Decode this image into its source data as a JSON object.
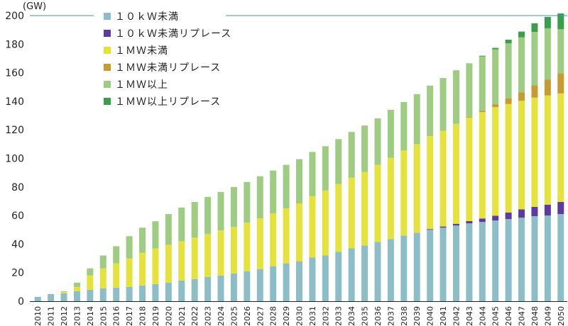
{
  "chart_data": {
    "type": "bar",
    "stacked": true,
    "unit_label": "(GW)",
    "ylim": [
      0,
      200
    ],
    "yticks": [
      0,
      20,
      40,
      60,
      80,
      100,
      120,
      140,
      160,
      180,
      200
    ],
    "categories": [
      "2010",
      "2011",
      "2012",
      "2013",
      "2014",
      "2015",
      "2016",
      "2017",
      "2018",
      "2019",
      "2020",
      "2021",
      "2022",
      "2023",
      "2024",
      "2025",
      "2026",
      "2027",
      "2028",
      "2029",
      "2030",
      "2031",
      "2032",
      "2033",
      "2034",
      "2035",
      "2036",
      "2037",
      "2038",
      "2039",
      "2040",
      "2041",
      "2042",
      "2043",
      "2044",
      "2045",
      "2046",
      "2047",
      "2048",
      "2049",
      "2050"
    ],
    "series": [
      {
        "name": "１０ｋＷ未満",
        "color": "#8dbec8",
        "values": [
          3,
          5,
          5.5,
          7,
          8,
          9,
          9.5,
          10,
          11,
          12,
          13,
          14.5,
          15.5,
          17,
          18,
          19.5,
          21,
          22.5,
          24.5,
          26.5,
          28,
          30.5,
          32,
          34.5,
          37,
          39,
          41.5,
          43.5,
          46,
          48,
          50,
          51.5,
          53,
          54.5,
          55.5,
          56.5,
          57.5,
          58.5,
          59.5,
          60,
          61
        ]
      },
      {
        "name": "１０ｋＷ未満リプレース",
        "color": "#5b3c9e",
        "values": [
          0,
          0,
          0,
          0,
          0,
          0,
          0,
          0,
          0,
          0,
          0,
          0,
          0,
          0,
          0,
          0,
          0,
          0,
          0,
          0,
          0,
          0,
          0,
          0,
          0,
          0,
          0,
          0,
          0,
          0,
          0.5,
          0.8,
          1.2,
          1.6,
          2.4,
          3.4,
          4.6,
          5.8,
          6.6,
          7.6,
          8.5
        ]
      },
      {
        "name": "１ＭＷ未満",
        "color": "#e6e23c",
        "values": [
          0,
          0,
          1,
          3,
          10,
          14,
          17,
          20,
          23,
          25,
          26.5,
          27.5,
          29,
          30,
          31.5,
          32.5,
          34,
          35.5,
          37,
          38.5,
          40.5,
          43,
          45.5,
          47.5,
          49.5,
          51.5,
          54,
          57,
          59.5,
          62,
          65,
          67,
          70,
          72.5,
          74.5,
          76,
          76,
          76,
          76.5,
          76.5,
          76
        ]
      },
      {
        "name": "１ＭＷ未満リプレース",
        "color": "#c79a32",
        "values": [
          0,
          0,
          0,
          0,
          0,
          0,
          0,
          0,
          0,
          0,
          0,
          0,
          0,
          0,
          0,
          0,
          0,
          0,
          0,
          0,
          0,
          0,
          0,
          0,
          0,
          0,
          0,
          0,
          0,
          0,
          0,
          0,
          0,
          0.5,
          1,
          2,
          4,
          6,
          8.5,
          11,
          14
        ]
      },
      {
        "name": "１ＭＷ以上",
        "color": "#9dcc82",
        "values": [
          0,
          0,
          0.5,
          3,
          5,
          9,
          12,
          15.5,
          17.5,
          19,
          21.5,
          23.5,
          25,
          26,
          27,
          28,
          28.5,
          29.5,
          30,
          30.5,
          31,
          31,
          31,
          31.5,
          32,
          32.5,
          32.5,
          33.5,
          34,
          35,
          35.5,
          37,
          37.5,
          37.5,
          38,
          38.5,
          38.5,
          38.5,
          37.5,
          36,
          31
        ]
      },
      {
        "name": "１ＭＷ以上リプレース",
        "color": "#3b9e4a",
        "values": [
          0,
          0,
          0,
          0,
          0,
          0,
          0,
          0,
          0,
          0,
          0,
          0,
          0,
          0,
          0,
          0,
          0,
          0,
          0,
          0,
          0,
          0,
          0,
          0,
          0,
          0,
          0,
          0,
          0,
          0,
          0,
          0,
          0,
          0,
          0.5,
          1,
          2.5,
          4,
          6,
          8,
          11
        ]
      }
    ]
  },
  "palette": {
    "axis": "#222222",
    "topline": "#3b95b8",
    "plot_bg": "#ffffff"
  }
}
